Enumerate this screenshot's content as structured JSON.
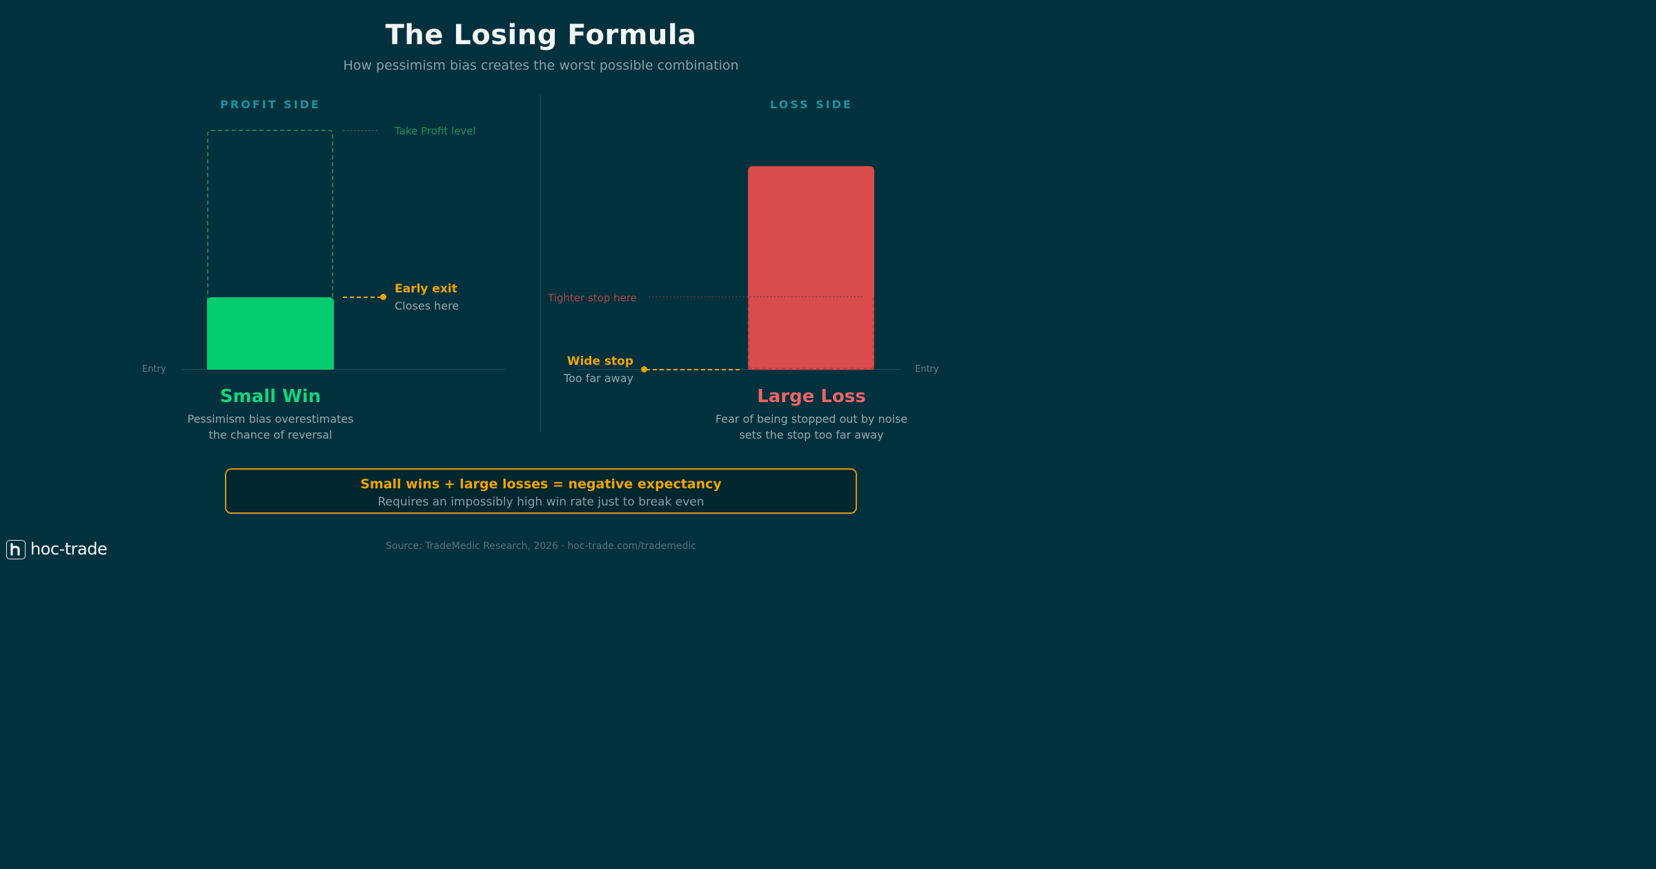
{
  "header": {
    "title": "The Losing Formula",
    "subtitle": "How pessimism bias creates the worst possible combination"
  },
  "profit_side": {
    "section_label": "PROFIT SIDE",
    "take_profit_label": "Take Profit level",
    "early_exit_title": "Early exit",
    "early_exit_sub": "Closes here",
    "entry_label": "Entry",
    "result_title": "Small Win",
    "description_line1": "Pessimism bias overestimates",
    "description_line2": "the chance of reversal"
  },
  "loss_side": {
    "section_label": "LOSS SIDE",
    "tighter_stop_label": "Tighter stop here",
    "wide_stop_title": "Wide stop",
    "wide_stop_sub": "Too far away",
    "entry_label": "Entry",
    "result_title": "Large Loss",
    "description_line1": "Fear of being stopped out by noise",
    "description_line2": "sets the stop too far away"
  },
  "summary": {
    "title": "Small wins + large losses = negative expectancy",
    "subtitle": "Requires an impossibly high win rate just to break even"
  },
  "footer": {
    "source": "Source: TradeMedic Research, 2026 · hoc-trade.com/trademedic"
  },
  "logo": {
    "text": "hoc-trade"
  },
  "colors": {
    "background": "#01313d",
    "win_green": "#00cc6f",
    "loss_red": "#da4b4c",
    "accent_amber": "#f0a500",
    "section_teal": "#1a93a2"
  }
}
